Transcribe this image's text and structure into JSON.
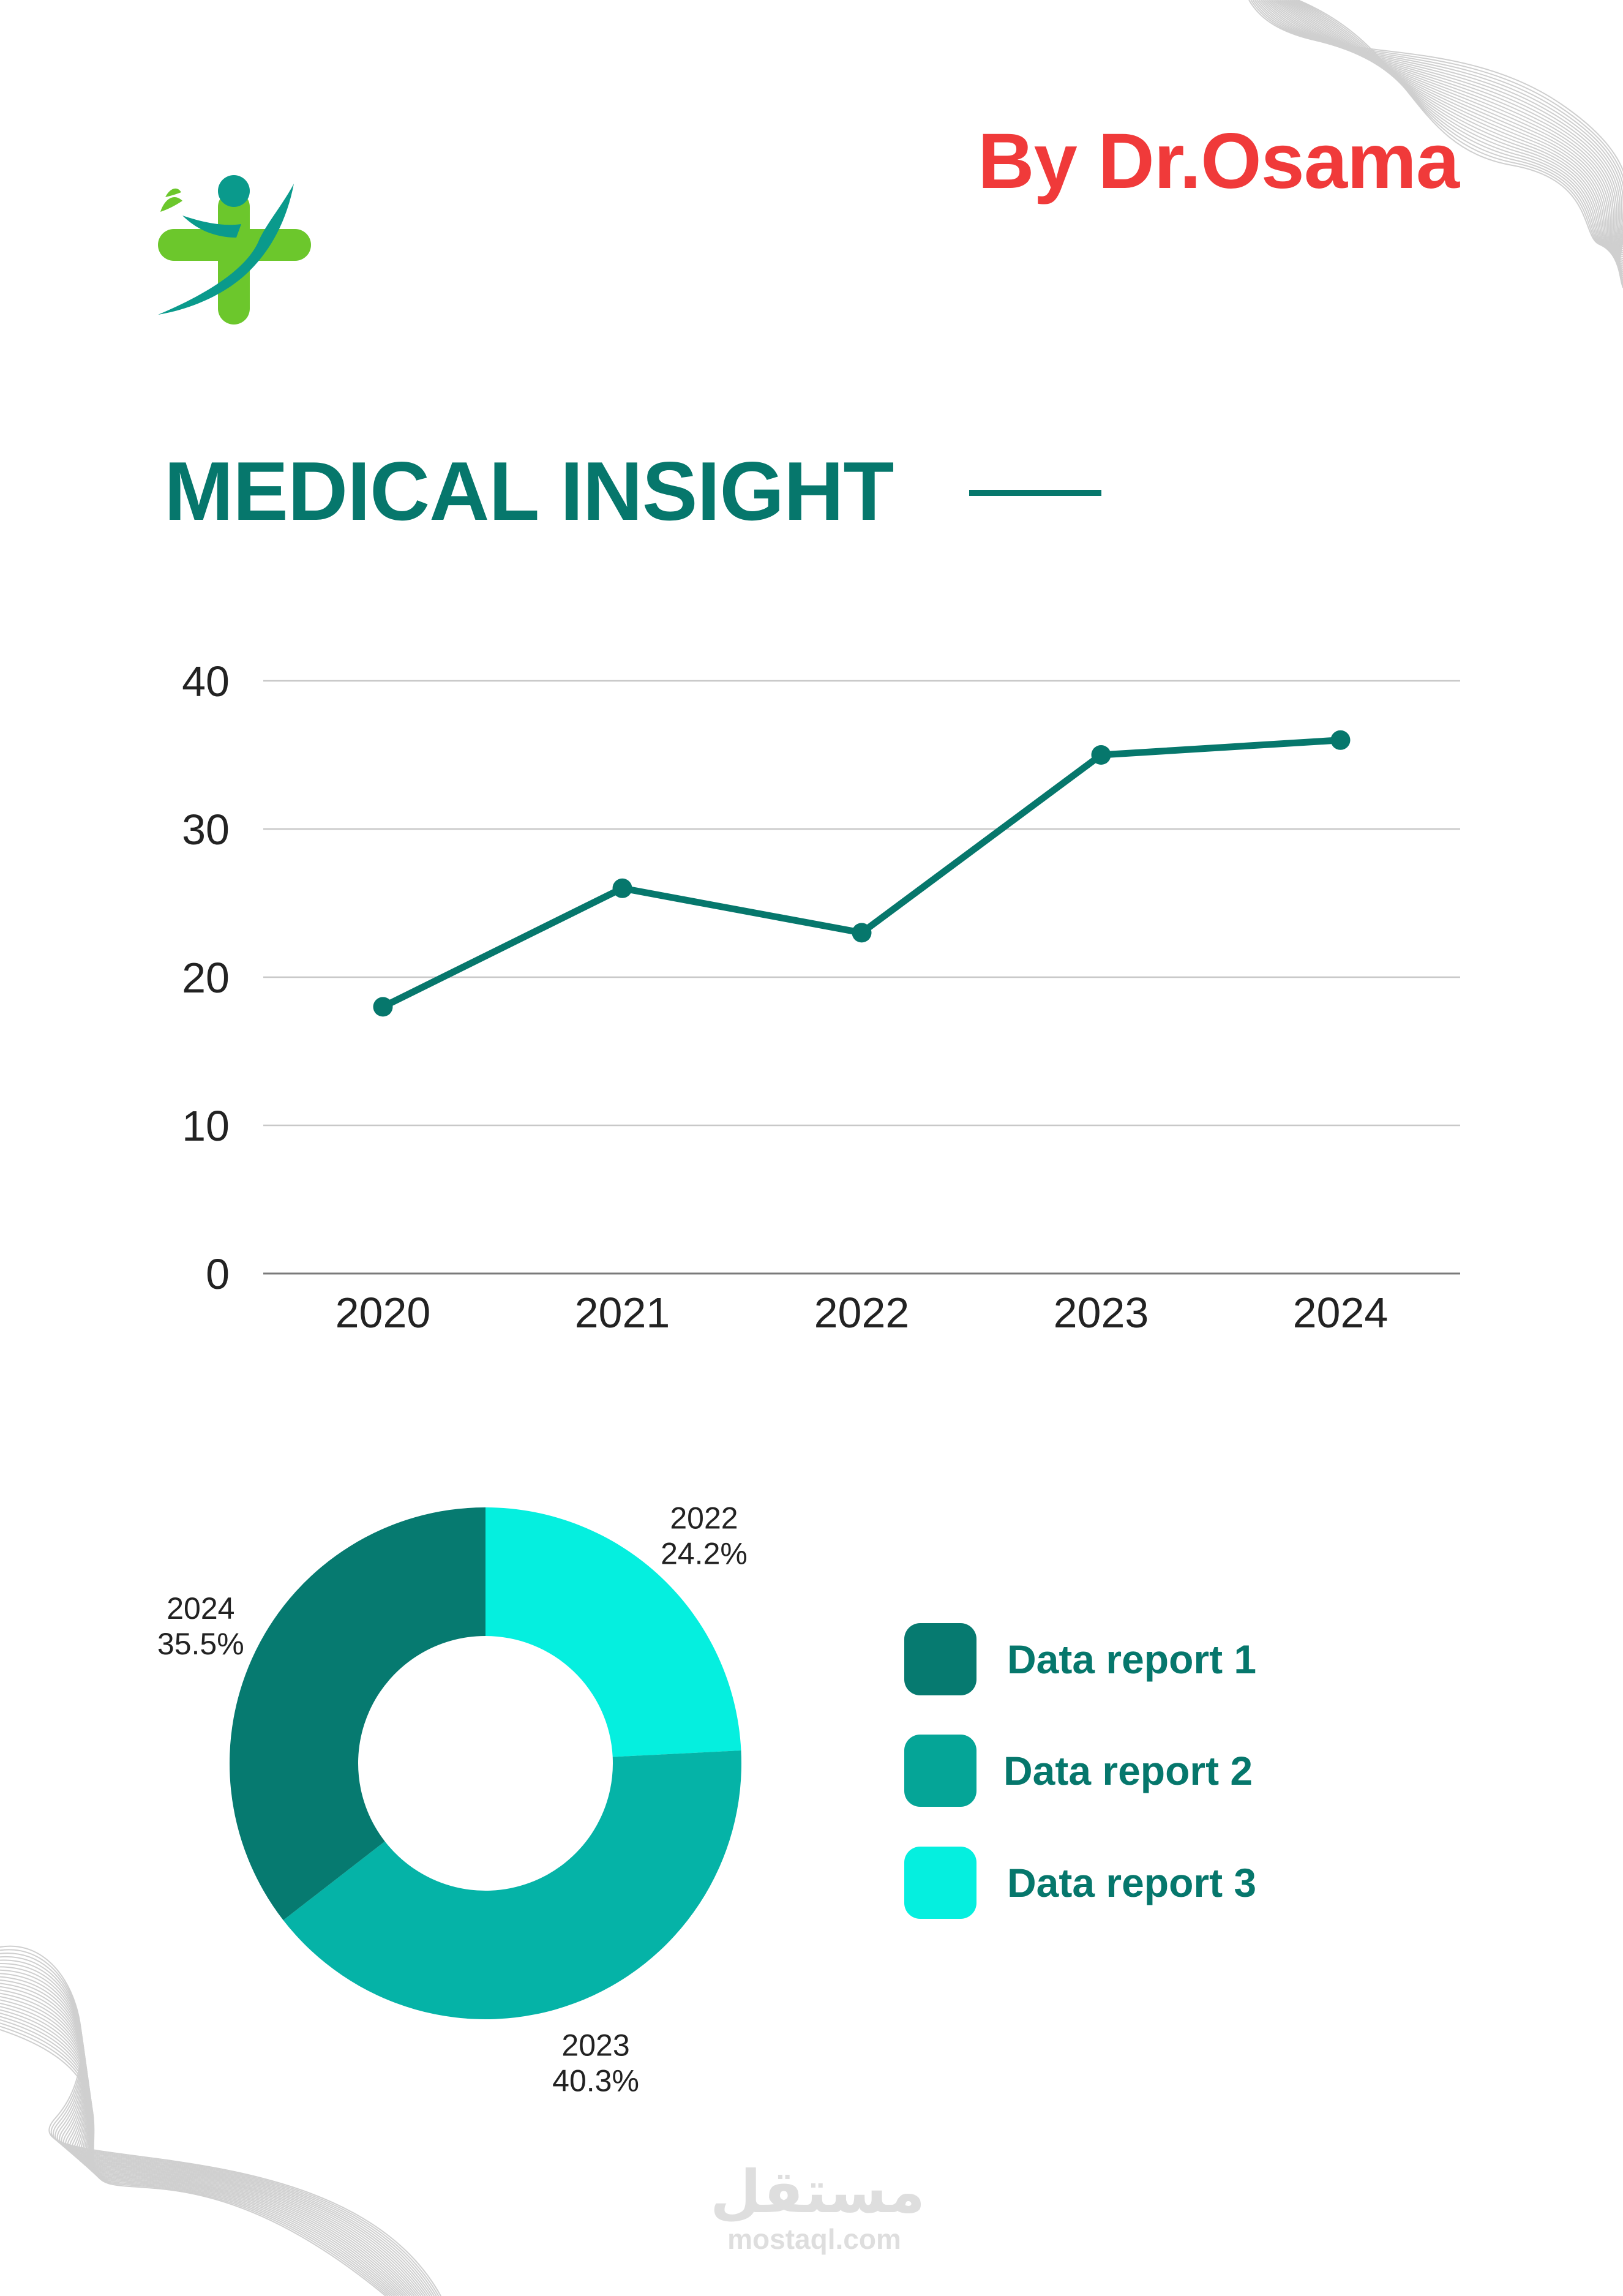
{
  "colors": {
    "brand": "#06776c",
    "author": "#f03a3a",
    "accent_green": "#6cc72c",
    "gridline": "#c8c8c8",
    "pie_2024": "#067a70",
    "pie_2023": "#05b3a7",
    "pie_2022": "#05efdf",
    "legend_1": "#067a70",
    "legend_2": "#05a597",
    "legend_3": "#05efdf"
  },
  "header": {
    "author": "By Dr.Osama",
    "title": "MEDICAL INSIGHT"
  },
  "icons": {
    "logo": "medical-cross-person-logo",
    "decoration": "wave-line-pattern"
  },
  "legend": [
    {
      "label": "Data report 1",
      "color": "#067a70"
    },
    {
      "label": "Data report 2",
      "color": "#05a597"
    },
    {
      "label": "Data report 3",
      "color": "#05efdf"
    }
  ],
  "watermark": {
    "logo_text": "مستقل",
    "site": "mostaql.com"
  },
  "chart_data": [
    {
      "type": "line",
      "x": [
        "2020",
        "2021",
        "2022",
        "2023",
        "2024"
      ],
      "series": [
        {
          "values": [
            18,
            26,
            23,
            35,
            36
          ],
          "color": "#06776c"
        }
      ],
      "yticks": [
        0,
        10,
        20,
        30,
        40
      ],
      "ylim": [
        0,
        40
      ],
      "grid": true,
      "title": "",
      "xlabel": "",
      "ylabel": ""
    },
    {
      "type": "pie",
      "donut": true,
      "slices": [
        {
          "label": "2022",
          "percent": "24.2%",
          "value": 24.2,
          "color": "#05efdf"
        },
        {
          "label": "2023",
          "percent": "40.3%",
          "value": 40.3,
          "color": "#05b3a7"
        },
        {
          "label": "2024",
          "percent": "35.5%",
          "value": 35.5,
          "color": "#067a70"
        }
      ]
    }
  ]
}
